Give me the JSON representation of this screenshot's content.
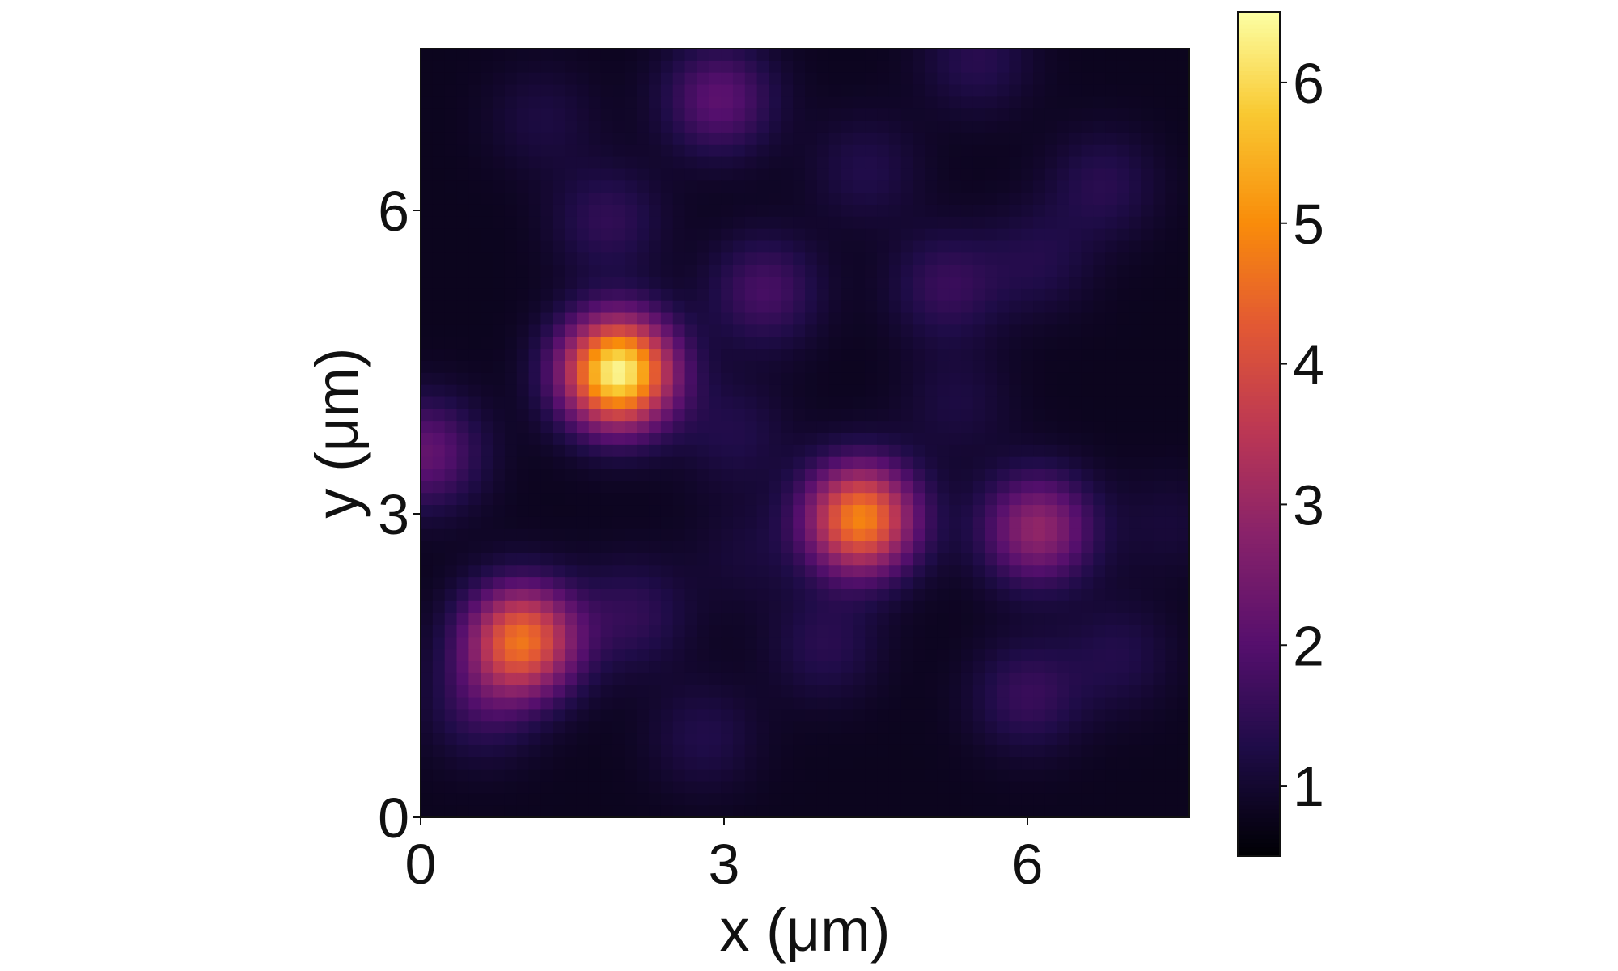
{
  "chart_data": {
    "type": "heatmap",
    "title": "",
    "xlabel": "x (μm)",
    "ylabel": "y (μm)",
    "xlim": [
      0,
      7.6
    ],
    "ylim": [
      0,
      7.6
    ],
    "xticks": [
      0,
      3,
      6
    ],
    "yticks": [
      0,
      3,
      6
    ],
    "xtick_labels": [
      "0",
      "3",
      "6"
    ],
    "ytick_labels": [
      "0",
      "3",
      "6"
    ],
    "colormap": "inferno",
    "colorbar": {
      "range": [
        0.5,
        6.5
      ],
      "ticks": [
        1,
        2,
        3,
        4,
        5,
        6
      ],
      "tick_labels": [
        "1",
        "2",
        "3",
        "4",
        "5",
        "6"
      ],
      "placement": "right"
    },
    "background_level": 0.8,
    "grid": false,
    "peaks": [
      {
        "x": 1.95,
        "y": 4.4,
        "value": 6.4
      },
      {
        "x": 1.0,
        "y": 1.75,
        "value": 4.6
      },
      {
        "x": 4.35,
        "y": 2.95,
        "value": 4.9
      },
      {
        "x": 6.1,
        "y": 2.85,
        "value": 2.9
      },
      {
        "x": 2.95,
        "y": 7.1,
        "value": 2.1
      },
      {
        "x": 0.05,
        "y": 3.6,
        "value": 2.2
      },
      {
        "x": 3.4,
        "y": 5.2,
        "value": 1.8
      },
      {
        "x": 1.85,
        "y": 5.9,
        "value": 1.5
      },
      {
        "x": 5.2,
        "y": 5.25,
        "value": 1.6
      },
      {
        "x": 6.0,
        "y": 1.2,
        "value": 1.6
      },
      {
        "x": 6.75,
        "y": 6.25,
        "value": 1.4
      },
      {
        "x": 5.5,
        "y": 7.5,
        "value": 1.4
      },
      {
        "x": 4.4,
        "y": 6.4,
        "value": 1.3
      },
      {
        "x": 3.1,
        "y": 3.8,
        "value": 1.3
      },
      {
        "x": 4.0,
        "y": 1.7,
        "value": 1.4
      },
      {
        "x": 5.3,
        "y": 4.1,
        "value": 1.2
      },
      {
        "x": 0.6,
        "y": 1.1,
        "value": 1.5
      },
      {
        "x": 2.1,
        "y": 2.0,
        "value": 1.5
      },
      {
        "x": 6.9,
        "y": 1.6,
        "value": 1.3
      },
      {
        "x": 2.8,
        "y": 0.8,
        "value": 1.3
      },
      {
        "x": 1.2,
        "y": 6.9,
        "value": 1.2
      },
      {
        "x": 6.1,
        "y": 5.5,
        "value": 1.3
      },
      {
        "x": 7.4,
        "y": 2.9,
        "value": 1.1
      },
      {
        "x": 3.2,
        "y": 2.6,
        "value": 1.1
      }
    ]
  }
}
